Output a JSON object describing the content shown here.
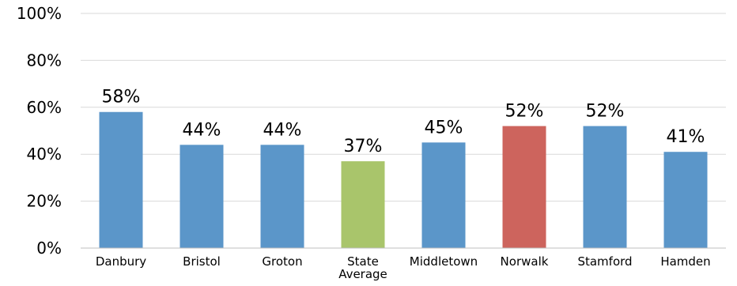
{
  "chart_data": {
    "type": "bar",
    "title": "",
    "xlabel": "",
    "ylabel": "",
    "ylim": [
      0,
      100
    ],
    "yticks": [
      0,
      20,
      40,
      60,
      80,
      100
    ],
    "ytick_labels": [
      "0%",
      "20%",
      "40%",
      "60%",
      "80%",
      "100%"
    ],
    "grid": true,
    "legend": "none",
    "categories": [
      "Danbury",
      "Bristol",
      "Groton",
      "State Average",
      "Middletown",
      "Norwalk",
      "Stamford",
      "Hamden"
    ],
    "category_lines": [
      [
        "Danbury"
      ],
      [
        "Bristol"
      ],
      [
        "Groton"
      ],
      [
        "State",
        "Average"
      ],
      [
        "Middletown"
      ],
      [
        "Norwalk"
      ],
      [
        "Stamford"
      ],
      [
        "Hamden"
      ]
    ],
    "values": [
      58,
      44,
      44,
      37,
      45,
      52,
      52,
      41
    ],
    "data_labels": [
      "58%",
      "44%",
      "44%",
      "37%",
      "45%",
      "52%",
      "52%",
      "41%"
    ],
    "bar_colors": [
      "#5b96c9",
      "#5b96c9",
      "#5b96c9",
      "#a9c56b",
      "#5b96c9",
      "#cd645d",
      "#5b96c9",
      "#5b96c9"
    ],
    "grid_color": "#d9d9d9",
    "axis_color": "#bfbfbf"
  }
}
